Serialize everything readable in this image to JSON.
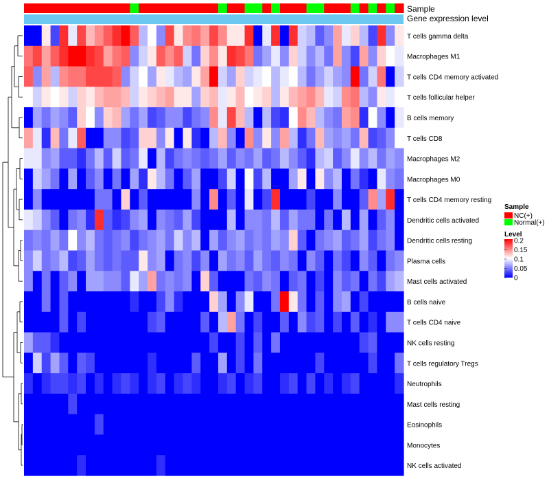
{
  "chart_data": {
    "type": "heatmap",
    "rows": [
      "T cells gamma delta",
      "Macrophages M1",
      "T cells CD4 memory activated",
      "T cells follicular helper",
      "B cells memory",
      "T cells CD8",
      "Macrophages M2",
      "Macrophages M0",
      "T cells CD4 memory resting",
      "Dendritic cells activated",
      "Dendritic cells resting",
      "Plasma cells",
      "Mast cells activated",
      "B cells naive",
      "T cells CD4 naive",
      "NK cells resting",
      "T cells regulatory  Tregs",
      "Neutrophils",
      "Mast cells resting",
      "Eosinophils",
      "Monocytes",
      "NK cells activated"
    ],
    "samples": [
      "NC(+)",
      "NC(+)",
      "NC(+)",
      "NC(+)",
      "NC(+)",
      "NC(+)",
      "NC(+)",
      "NC(+)",
      "NC(+)",
      "NC(+)",
      "NC(+)",
      "NC(+)",
      "Normal(+)",
      "NC(+)",
      "NC(+)",
      "NC(+)",
      "NC(+)",
      "NC(+)",
      "NC(+)",
      "NC(+)",
      "NC(+)",
      "NC(+)",
      "Normal(+)",
      "NC(+)",
      "NC(+)",
      "Normal(+)",
      "Normal(+)",
      "NC(+)",
      "Normal(+)",
      "NC(+)",
      "NC(+)",
      "NC(+)",
      "Normal(+)",
      "Normal(+)",
      "NC(+)",
      "NC(+)",
      "NC(+)",
      "Normal(+)",
      "NC(+)",
      "Normal(+)",
      "NC(+)",
      "Normal(+)",
      "NC(+)"
    ],
    "values": [
      [
        0.0,
        0.0,
        0.12,
        0.03,
        0.2,
        0.1,
        0.19,
        0.14,
        0.16,
        0.18,
        0.2,
        0.22,
        0.18,
        0.08,
        0.11,
        0.06,
        0.19,
        0.12,
        0.16,
        0.17,
        0.15,
        0.19,
        0.16,
        0.12,
        0.12,
        0.2,
        0.0,
        0.1,
        0.2,
        0.0,
        0.2,
        0.09,
        0.08,
        0.04,
        0.06,
        0.15,
        0.1,
        0.13,
        0.08,
        0.03,
        0.2,
        0.06,
        0.12
      ],
      [
        0.17,
        0.19,
        0.15,
        0.18,
        0.2,
        0.22,
        0.22,
        0.2,
        0.19,
        0.15,
        0.17,
        0.18,
        0.06,
        0.09,
        0.12,
        0.18,
        0.16,
        0.18,
        0.09,
        0.05,
        0.13,
        0.16,
        0.12,
        0.2,
        0.19,
        0.17,
        0.05,
        0.07,
        0.1,
        0.06,
        0.13,
        0.09,
        0.06,
        0.08,
        0.05,
        0.15,
        0.06,
        0.03,
        0.15,
        0.06,
        0.13,
        0.11,
        0.1
      ],
      [
        0.18,
        0.06,
        0.15,
        0.08,
        0.16,
        0.17,
        0.17,
        0.19,
        0.19,
        0.19,
        0.18,
        0.06,
        0.09,
        0.11,
        0.07,
        0.12,
        0.1,
        0.08,
        0.07,
        0.12,
        0.15,
        0.22,
        0.09,
        0.07,
        0.13,
        0.09,
        0.1,
        0.11,
        0.08,
        0.1,
        0.11,
        0.08,
        0.05,
        0.07,
        0.09,
        0.07,
        0.06,
        0.22,
        0.05,
        0.09,
        0.17,
        0.0,
        0.09
      ],
      [
        0.11,
        0.09,
        0.12,
        0.11,
        0.12,
        0.09,
        0.13,
        0.12,
        0.14,
        0.15,
        0.15,
        0.14,
        0.09,
        0.12,
        0.13,
        0.14,
        0.15,
        0.12,
        0.12,
        0.07,
        0.13,
        0.14,
        0.1,
        0.12,
        0.14,
        0.11,
        0.12,
        0.13,
        0.08,
        0.12,
        0.14,
        0.15,
        0.16,
        0.14,
        0.1,
        0.09,
        0.16,
        0.17,
        0.08,
        0.06,
        0.12,
        0.1,
        0.11
      ],
      [
        0.0,
        0.07,
        0.05,
        0.07,
        0.06,
        0.04,
        0.13,
        0.11,
        0.06,
        0.13,
        0.14,
        0.07,
        0.05,
        0.07,
        0.03,
        0.04,
        0.06,
        0.06,
        0.03,
        0.05,
        0.06,
        0.16,
        0.1,
        0.19,
        0.14,
        0.08,
        0.0,
        0.08,
        0.03,
        0.02,
        0.11,
        0.16,
        0.14,
        0.08,
        0.06,
        0.05,
        0.15,
        0.16,
        0.02,
        0.11,
        0.06,
        0.0,
        0.1
      ],
      [
        0.15,
        0.1,
        0.02,
        0.14,
        0.05,
        0.1,
        0.18,
        0.0,
        0.0,
        0.06,
        0.06,
        0.03,
        0.04,
        0.13,
        0.13,
        0.06,
        0.12,
        0.0,
        0.12,
        0.02,
        0.0,
        0.08,
        0.14,
        0.06,
        0.0,
        0.16,
        0.06,
        0.12,
        0.06,
        0.15,
        0.08,
        0.02,
        0.05,
        0.14,
        0.07,
        0.06,
        0.07,
        0.05,
        0.14,
        0.03,
        0.04,
        0.06,
        0.11
      ],
      [
        0.1,
        0.1,
        0.06,
        0.07,
        0.04,
        0.04,
        0.02,
        0.05,
        0.08,
        0.04,
        0.09,
        0.04,
        0.05,
        0.1,
        0.0,
        0.08,
        0.03,
        0.05,
        0.06,
        0.05,
        0.04,
        0.05,
        0.07,
        0.04,
        0.06,
        0.05,
        0.07,
        0.04,
        0.05,
        0.08,
        0.06,
        0.04,
        0.02,
        0.08,
        0.09,
        0.04,
        0.06,
        0.1,
        0.06,
        0.08,
        0.05,
        0.07,
        0.06
      ],
      [
        0.0,
        0.09,
        0.07,
        0.05,
        0.0,
        0.07,
        0.0,
        0.04,
        0.06,
        0.0,
        0.05,
        0.0,
        0.07,
        0.02,
        0.12,
        0.08,
        0.05,
        0.0,
        0.04,
        0.07,
        0.0,
        0.0,
        0.03,
        0.09,
        0.0,
        0.11,
        0.03,
        0.08,
        0.0,
        0.0,
        0.07,
        0.12,
        0.0,
        0.12,
        0.06,
        0.08,
        0.0,
        0.05,
        0.02,
        0.0,
        0.1,
        0.06,
        0.05
      ],
      [
        0.0,
        0.06,
        0.0,
        0.0,
        0.0,
        0.0,
        0.0,
        0.0,
        0.05,
        0.05,
        0.0,
        0.13,
        0.0,
        0.04,
        0.0,
        0.0,
        0.0,
        0.0,
        0.0,
        0.06,
        0.0,
        0.16,
        0.0,
        0.04,
        0.0,
        0.1,
        0.0,
        0.03,
        0.2,
        0.0,
        0.0,
        0.0,
        0.03,
        0.0,
        0.0,
        0.06,
        0.0,
        0.0,
        0.04,
        0.16,
        0.07,
        0.2,
        0.0
      ],
      [
        0.1,
        0.09,
        0.06,
        0.04,
        0.0,
        0.05,
        0.06,
        0.02,
        0.2,
        0.04,
        0.02,
        0.03,
        0.06,
        0.07,
        0.0,
        0.06,
        0.05,
        0.04,
        0.07,
        0.03,
        0.0,
        0.0,
        0.0,
        0.08,
        0.0,
        0.06,
        0.06,
        0.05,
        0.08,
        0.04,
        0.07,
        0.05,
        0.05,
        0.0,
        0.05,
        0.0,
        0.08,
        0.0,
        0.07,
        0.0,
        0.04,
        0.06,
        0.0
      ],
      [
        0.05,
        0.06,
        0.05,
        0.07,
        0.05,
        0.11,
        0.06,
        0.08,
        0.05,
        0.04,
        0.05,
        0.06,
        0.03,
        0.05,
        0.06,
        0.07,
        0.05,
        0.09,
        0.06,
        0.08,
        0.0,
        0.07,
        0.04,
        0.06,
        0.07,
        0.05,
        0.06,
        0.05,
        0.07,
        0.06,
        0.13,
        0.04,
        0.0,
        0.05,
        0.06,
        0.07,
        0.04,
        0.05,
        0.07,
        0.03,
        0.05,
        0.06,
        0.0
      ],
      [
        0.06,
        0.09,
        0.05,
        0.06,
        0.08,
        0.03,
        0.04,
        0.07,
        0.05,
        0.04,
        0.05,
        0.04,
        0.04,
        0.12,
        0.06,
        0.07,
        0.0,
        0.05,
        0.06,
        0.03,
        0.06,
        0.0,
        0.07,
        0.05,
        0.06,
        0.04,
        0.07,
        0.05,
        0.04,
        0.06,
        0.05,
        0.0,
        0.06,
        0.04,
        0.0,
        0.05,
        0.03,
        0.0,
        0.06,
        0.04,
        0.0,
        0.05,
        0.06
      ],
      [
        0.06,
        0.0,
        0.05,
        0.0,
        0.04,
        0.06,
        0.0,
        0.07,
        0.07,
        0.06,
        0.06,
        0.04,
        0.1,
        0.07,
        0.15,
        0.05,
        0.06,
        0.05,
        0.06,
        0.0,
        0.13,
        0.04,
        0.0,
        0.0,
        0.0,
        0.05,
        0.04,
        0.06,
        0.05,
        0.0,
        0.04,
        0.05,
        0.0,
        0.03,
        0.0,
        0.06,
        0.04,
        0.05,
        0.0,
        0.05,
        0.03,
        0.07,
        0.08
      ],
      [
        0.0,
        0.0,
        0.05,
        0.0,
        0.04,
        0.0,
        0.0,
        0.0,
        0.0,
        0.0,
        0.0,
        0.0,
        0.02,
        0.0,
        0.0,
        0.03,
        0.06,
        0.02,
        0.0,
        0.0,
        0.0,
        0.13,
        0.07,
        0.0,
        0.06,
        0.1,
        0.0,
        0.0,
        0.05,
        0.22,
        0.12,
        0.05,
        0.0,
        0.04,
        0.0,
        0.06,
        0.07,
        0.0,
        0.03,
        0.0,
        0.0,
        0.0,
        0.0
      ],
      [
        0.0,
        0.0,
        0.0,
        0.0,
        0.04,
        0.0,
        0.03,
        0.0,
        0.0,
        0.0,
        0.0,
        0.0,
        0.0,
        0.0,
        0.03,
        0.04,
        0.0,
        0.0,
        0.0,
        0.0,
        0.04,
        0.0,
        0.08,
        0.15,
        0.05,
        0.0,
        0.03,
        0.0,
        0.0,
        0.04,
        0.0,
        0.06,
        0.03,
        0.04,
        0.0,
        0.03,
        0.0,
        0.04,
        0.0,
        0.02,
        0.0,
        0.06,
        0.06
      ],
      [
        0.07,
        0.04,
        0.04,
        0.02,
        0.0,
        0.0,
        0.0,
        0.0,
        0.0,
        0.0,
        0.0,
        0.0,
        0.0,
        0.0,
        0.0,
        0.0,
        0.0,
        0.0,
        0.0,
        0.0,
        0.0,
        0.03,
        0.0,
        0.0,
        0.03,
        0.0,
        0.04,
        0.0,
        0.05,
        0.0,
        0.0,
        0.0,
        0.0,
        0.0,
        0.0,
        0.0,
        0.0,
        0.0,
        0.03,
        0.04,
        0.0,
        0.0,
        0.0
      ],
      [
        0.0,
        0.09,
        0.03,
        0.07,
        0.04,
        0.0,
        0.04,
        0.03,
        0.0,
        0.0,
        0.0,
        0.0,
        0.0,
        0.0,
        0.02,
        0.0,
        0.0,
        0.0,
        0.0,
        0.04,
        0.0,
        0.0,
        0.07,
        0.0,
        0.03,
        0.0,
        0.05,
        0.0,
        0.0,
        0.0,
        0.0,
        0.0,
        0.0,
        0.03,
        0.0,
        0.0,
        0.0,
        0.0,
        0.0,
        0.03,
        0.0,
        0.0,
        0.05
      ],
      [
        0.02,
        0.0,
        0.02,
        0.03,
        0.03,
        0.02,
        0.03,
        0.0,
        0.02,
        0.0,
        0.02,
        0.03,
        0.02,
        0.0,
        0.02,
        0.03,
        0.0,
        0.02,
        0.03,
        0.02,
        0.0,
        0.0,
        0.02,
        0.03,
        0.0,
        0.02,
        0.03,
        0.0,
        0.0,
        0.02,
        0.03,
        0.0,
        0.03,
        0.0,
        0.02,
        0.0,
        0.02,
        0.03,
        0.0,
        0.0,
        0.0,
        0.0,
        0.02
      ],
      [
        0.0,
        0.0,
        0.0,
        0.0,
        0.0,
        0.03,
        0.0,
        0.0,
        0.0,
        0.0,
        0.0,
        0.0,
        0.0,
        0.0,
        0.0,
        0.0,
        0.0,
        0.0,
        0.0,
        0.0,
        0.0,
        0.0,
        0.0,
        0.0,
        0.0,
        0.0,
        0.0,
        0.0,
        0.0,
        0.0,
        0.0,
        0.0,
        0.0,
        0.0,
        0.0,
        0.0,
        0.0,
        0.0,
        0.0,
        0.0,
        0.0,
        0.0,
        0.0
      ],
      [
        0.0,
        0.0,
        0.0,
        0.0,
        0.0,
        0.0,
        0.0,
        0.0,
        0.03,
        0.0,
        0.0,
        0.0,
        0.0,
        0.0,
        0.0,
        0.0,
        0.0,
        0.0,
        0.0,
        0.0,
        0.0,
        0.0,
        0.0,
        0.0,
        0.0,
        0.0,
        0.0,
        0.0,
        0.0,
        0.0,
        0.0,
        0.0,
        0.0,
        0.0,
        0.0,
        0.0,
        0.0,
        0.0,
        0.0,
        0.0,
        0.0,
        0.0,
        0.0
      ],
      [
        0.0,
        0.0,
        0.0,
        0.0,
        0.0,
        0.0,
        0.0,
        0.0,
        0.0,
        0.0,
        0.0,
        0.0,
        0.0,
        0.0,
        0.0,
        0.0,
        0.0,
        0.0,
        0.0,
        0.0,
        0.0,
        0.0,
        0.0,
        0.0,
        0.0,
        0.0,
        0.0,
        0.0,
        0.0,
        0.0,
        0.0,
        0.0,
        0.0,
        0.0,
        0.0,
        0.0,
        0.0,
        0.0,
        0.0,
        0.0,
        0.0,
        0.0,
        0.0
      ],
      [
        0.0,
        0.0,
        0.0,
        0.0,
        0.0,
        0.0,
        0.02,
        0.0,
        0.0,
        0.0,
        0.0,
        0.0,
        0.0,
        0.0,
        0.0,
        0.02,
        0.0,
        0.0,
        0.0,
        0.0,
        0.0,
        0.0,
        0.0,
        0.0,
        0.0,
        0.0,
        0.0,
        0.0,
        0.0,
        0.0,
        0.0,
        0.0,
        0.0,
        0.0,
        0.0,
        0.0,
        0.0,
        0.0,
        0.0,
        0.0,
        0.0,
        0.0,
        0.0
      ]
    ],
    "annotation_labels": {
      "sample": "Sample",
      "gene_level": "Gene expression level"
    },
    "legend": {
      "sample_title": "Sample",
      "sample_entries": [
        {
          "label": "NC(+)",
          "color": "#ff0000"
        },
        {
          "label": "Normal(+)",
          "color": "#00ff00"
        }
      ],
      "level_title": "Level",
      "level_ticks": [
        {
          "value": 0.2,
          "label": "0.2"
        },
        {
          "value": 0.15,
          "label": "0.15"
        },
        {
          "value": 0.1,
          "label": "0.1"
        },
        {
          "value": 0.05,
          "label": "0.05"
        },
        {
          "value": 0,
          "label": "0"
        }
      ]
    },
    "colors": {
      "low": "#0000ff",
      "mid": "#ffffff",
      "high": "#ff0000",
      "annotation_bar": "#6cc8f0"
    },
    "value_range": [
      0,
      0.22
    ],
    "value_mid": 0.11
  }
}
